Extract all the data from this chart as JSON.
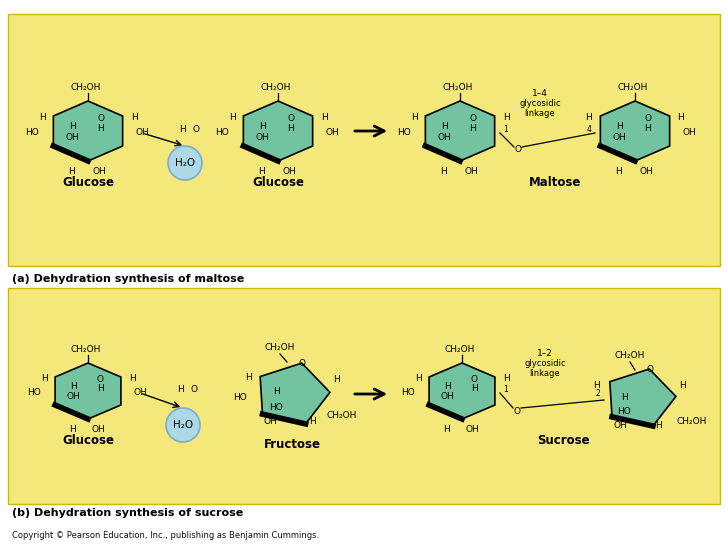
{
  "bg_color": "#FFFFFF",
  "panel_a_bg": "#F5E87A",
  "panel_b_bg": "#F5E87A",
  "sugar_color": "#72C4A0",
  "water_color": "#ADD8E6",
  "water_edge": "#7AAECC",
  "panel_border": "#C8C800",
  "title_a": "(a) Dehydration synthesis of maltose",
  "title_b": "(b) Dehydration synthesis of sucrose",
  "copyright": "Copyright © Pearson Education, Inc., publishing as Benjamin Cummings.",
  "label_glucose": "Glucose",
  "label_glucose2": "Glucose",
  "label_maltose": "Maltose",
  "label_fructose": "Fructose",
  "label_sucrose": "Sucrose",
  "glyco_a": "1–4",
  "glyco_b": "1–2"
}
